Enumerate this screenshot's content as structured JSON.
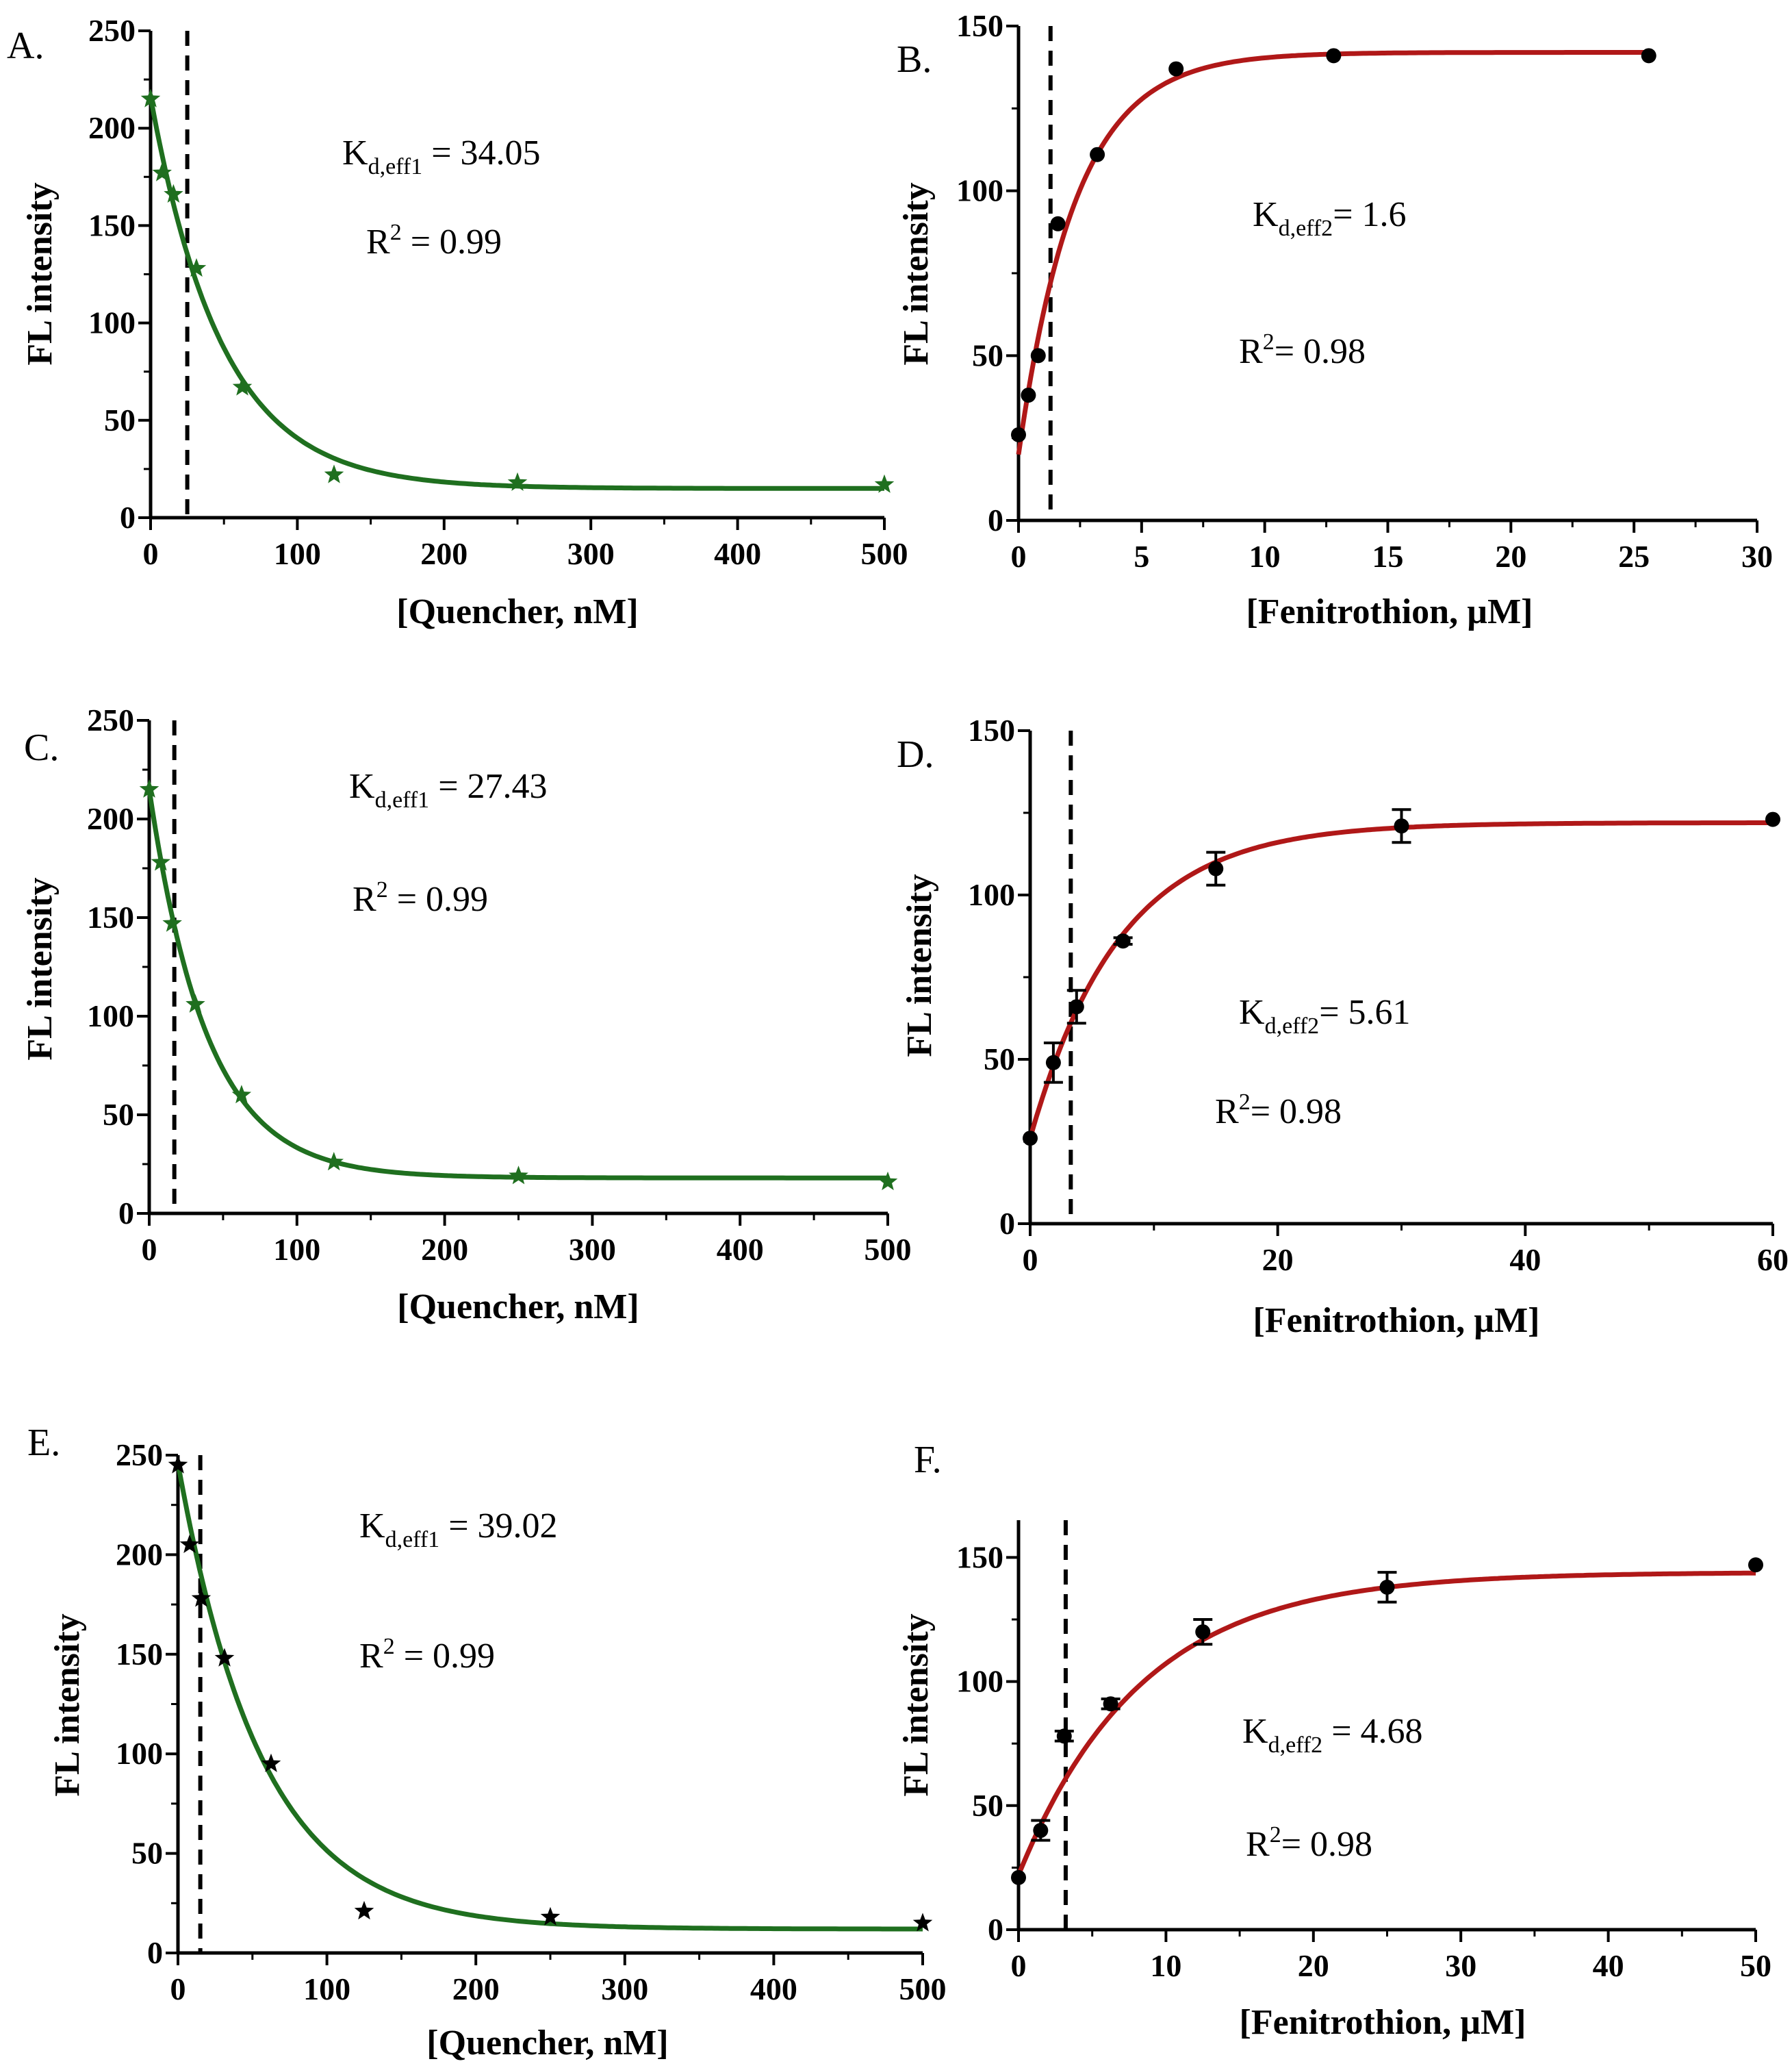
{
  "chart_data": [
    {
      "panel": "A.",
      "type": "scatter",
      "xlabel": "[Quencher, nM]",
      "ylabel": "FL intensity",
      "xlim": [
        0,
        500
      ],
      "ylim": [
        0,
        250
      ],
      "xticks": [
        "0",
        "100",
        "200",
        "300",
        "400",
        "500"
      ],
      "yticks": [
        "0",
        "50",
        "100",
        "150",
        "200",
        "250"
      ],
      "marker": "star",
      "color": "#1f6f1f",
      "fit_color": "#1f6f1f",
      "x": [
        0,
        7.8,
        15.6,
        31.25,
        62.5,
        125,
        250,
        500
      ],
      "y": [
        215,
        177,
        166,
        128,
        67,
        22,
        18,
        17
      ],
      "fit": {
        "model": "exp_decay",
        "y0": 216,
        "plateau": 15,
        "k": 0.0205
      },
      "vline": 25,
      "annotation": {
        "main": "K",
        "sub": "d,eff1",
        "value": " = 34.05",
        "r_main": "R",
        "r_sup": "2",
        "r_value": " = 0.99"
      },
      "grid": false,
      "legend": "none"
    },
    {
      "panel": "B.",
      "type": "scatter",
      "xlabel": "[Fenitrothion, µM]",
      "ylabel": "FL intensity",
      "xlim": [
        0,
        30
      ],
      "ylim": [
        0,
        150
      ],
      "xticks": [
        "0",
        "5",
        "10",
        "15",
        "20",
        "25",
        "30"
      ],
      "yticks": [
        "0",
        "50",
        "100",
        "150"
      ],
      "marker": "circle",
      "color": "#000000",
      "fit_color": "#b01818",
      "x": [
        0,
        0.4,
        0.8,
        1.6,
        3.2,
        6.4,
        12.8,
        25.6
      ],
      "y": [
        26,
        38,
        50,
        90,
        111,
        137,
        141,
        141
      ],
      "fit": {
        "model": "exp_rise",
        "y0": 20,
        "plateau": 142,
        "k": 0.43
      },
      "vline": 1.3,
      "annotation": {
        "main": "K",
        "sub": "d,eff2",
        "value": "= 1.6",
        "r_main": "R",
        "r_sup": "2",
        "r_value": "= 0.98"
      },
      "grid": false,
      "legend": "none"
    },
    {
      "panel": "C.",
      "type": "scatter",
      "xlabel": "[Quencher, nM]",
      "ylabel": "FL intensity",
      "xlim": [
        0,
        500
      ],
      "ylim": [
        0,
        250
      ],
      "xticks": [
        "0",
        "100",
        "200",
        "300",
        "400",
        "500"
      ],
      "yticks": [
        "0",
        "50",
        "100",
        "150",
        "200",
        "250"
      ],
      "marker": "star",
      "color": "#1f6f1f",
      "fit_color": "#1f6f1f",
      "x": [
        0,
        7.8,
        15.6,
        31.25,
        62.5,
        125,
        250,
        500
      ],
      "y": [
        215,
        178,
        147,
        106,
        60,
        26,
        19,
        16
      ],
      "fit": {
        "model": "exp_decay",
        "y0": 215,
        "plateau": 18,
        "k": 0.0255
      },
      "vline": 17,
      "annotation": {
        "main": "K",
        "sub": "d,eff1",
        "value": " = 27.43",
        "r_main": "R",
        "r_sup": "2",
        "r_value": " = 0.99"
      },
      "grid": false,
      "legend": "none"
    },
    {
      "panel": "D.",
      "type": "scatter",
      "xlabel": "[Fenitrothion, µM]",
      "ylabel": "FL intensity",
      "xlim": [
        0,
        64
      ],
      "ylim": [
        0,
        150
      ],
      "xticks": [
        "0",
        "20",
        "40",
        "60"
      ],
      "yticks": [
        "0",
        "50",
        "100",
        "150"
      ],
      "marker": "circle",
      "color": "#000000",
      "fit_color": "#b01818",
      "x": [
        0,
        2,
        4,
        8,
        16,
        32,
        64
      ],
      "y": [
        26,
        49,
        66,
        86,
        108,
        121,
        123
      ],
      "y_err": [
        0,
        6,
        5,
        1,
        5,
        5,
        0
      ],
      "fit": {
        "model": "exp_rise",
        "y0": 26,
        "plateau": 122,
        "k": 0.13
      },
      "vline": 3.5,
      "annotation": {
        "main": "K",
        "sub": "d,eff2",
        "value": "= 5.61",
        "r_main": "R",
        "r_sup": "2",
        "r_value": "= 0.98"
      },
      "grid": false,
      "legend": "none"
    },
    {
      "panel": "E.",
      "type": "scatter",
      "xlabel": "[Quencher, nM]",
      "ylabel": "FL intensity",
      "xlim": [
        0,
        500
      ],
      "ylim": [
        0,
        250
      ],
      "xticks": [
        "0",
        "100",
        "200",
        "300",
        "400",
        "500"
      ],
      "yticks": [
        "0",
        "50",
        "100",
        "150",
        "200",
        "250"
      ],
      "marker": "star",
      "color": "#000000",
      "fit_color": "#1f6f1f",
      "x": [
        0,
        7.8,
        15.6,
        31.25,
        62.5,
        125,
        250,
        500
      ],
      "y": [
        245,
        205,
        178,
        148,
        95,
        21,
        18,
        15
      ],
      "fit": {
        "model": "exp_decay",
        "y0": 246,
        "plateau": 12,
        "k": 0.0178
      },
      "vline": 15,
      "annotation": {
        "main": "K",
        "sub": "d,eff1",
        "value": " = 39.02",
        "r_main": "R",
        "r_sup": "2",
        "r_value": " = 0.99"
      },
      "grid": false,
      "legend": "none"
    },
    {
      "panel": "F.",
      "type": "scatter",
      "xlabel": "[Fenitrothion, µM]",
      "ylabel": "FL intensity",
      "xlim": [
        0,
        50
      ],
      "ylim": [
        0,
        165
      ],
      "xticks": [
        "0",
        "10",
        "20",
        "30",
        "40",
        "50"
      ],
      "yticks": [
        "0",
        "50",
        "100",
        "150"
      ],
      "marker": "circle",
      "color": "#000000",
      "fit_color": "#b01818",
      "x": [
        0,
        1.5,
        3.1,
        6.25,
        12.5,
        25,
        50
      ],
      "y": [
        21,
        40,
        78,
        91,
        120,
        138,
        147
      ],
      "y_err": [
        0,
        4,
        2,
        2,
        5,
        6,
        0
      ],
      "fit": {
        "model": "exp_rise",
        "y0": 22,
        "plateau": 144,
        "k": 0.12
      },
      "vline": 3.2,
      "annotation": {
        "main": "K",
        "sub": "d,eff2",
        "value": " = 4.68",
        "r_main": "R",
        "r_sup": "2",
        "r_value": "= 0.98"
      },
      "grid": false,
      "legend": "none"
    }
  ]
}
